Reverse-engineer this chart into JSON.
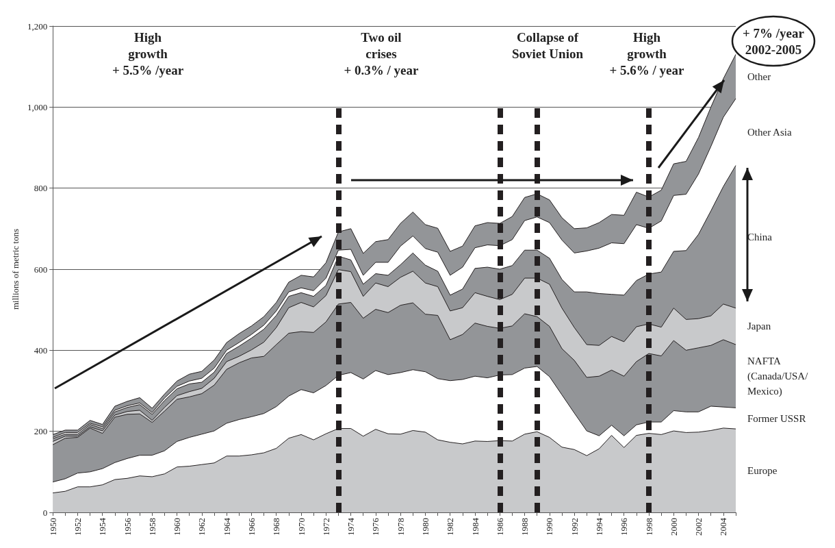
{
  "chart_data": {
    "type": "area",
    "stacked": true,
    "ylabel": "millions of metric tons",
    "x": [
      1950,
      1951,
      1952,
      1953,
      1954,
      1955,
      1956,
      1957,
      1958,
      1959,
      1960,
      1961,
      1962,
      1963,
      1964,
      1965,
      1966,
      1967,
      1968,
      1969,
      1970,
      1971,
      1972,
      1973,
      1974,
      1975,
      1976,
      1977,
      1978,
      1979,
      1980,
      1981,
      1982,
      1983,
      1984,
      1985,
      1986,
      1987,
      1988,
      1989,
      1990,
      1991,
      1992,
      1993,
      1994,
      1995,
      1996,
      1997,
      1998,
      1999,
      2000,
      2001,
      2002,
      2003,
      2004,
      2005
    ],
    "series": [
      {
        "name": "Europe",
        "color": "#c8c9cb",
        "values": [
          48,
          52,
          63,
          63,
          68,
          81,
          84,
          90,
          88,
          95,
          112,
          114,
          118,
          122,
          139,
          139,
          142,
          147,
          158,
          183,
          192,
          179,
          194,
          207,
          207,
          188,
          205,
          194,
          193,
          202,
          198,
          179,
          173,
          169,
          176,
          175,
          177,
          176,
          193,
          199,
          185,
          161,
          155,
          140,
          157,
          190,
          160,
          190,
          195,
          192,
          201,
          197,
          198,
          202,
          208,
          206
        ]
      },
      {
        "name": "Former USSR",
        "color": "#ffffff",
        "values": [
          27,
          31,
          34,
          37,
          40,
          42,
          49,
          51,
          53,
          57,
          63,
          71,
          75,
          79,
          81,
          90,
          94,
          97,
          103,
          104,
          111,
          116,
          119,
          131,
          138,
          141,
          145,
          146,
          152,
          150,
          149,
          151,
          152,
          159,
          160,
          157,
          162,
          164,
          163,
          161,
          150,
          129,
          90,
          61,
          32,
          25,
          29,
          26,
          28,
          31,
          50,
          51,
          50,
          60,
          52,
          52
        ]
      },
      {
        "name": "NAFTA (Canada/USA/Mexico)",
        "color": "#939598",
        "values": [
          92,
          100,
          88,
          108,
          87,
          112,
          109,
          102,
          81,
          98,
          104,
          100,
          100,
          113,
          133,
          140,
          145,
          141,
          153,
          155,
          143,
          149,
          157,
          176,
          173,
          150,
          151,
          153,
          166,
          165,
          142,
          156,
          101,
          111,
          131,
          127,
          115,
          120,
          134,
          123,
          124,
          114,
          130,
          132,
          147,
          136,
          147,
          156,
          169,
          163,
          173,
          152,
          158,
          150,
          166,
          156
        ]
      },
      {
        "name": "Japan",
        "color": "#c8c9cb",
        "values": [
          8,
          5,
          3,
          3,
          6,
          5,
          7,
          9,
          5,
          9,
          9,
          13,
          13,
          17,
          19,
          16,
          20,
          35,
          42,
          63,
          72,
          63,
          65,
          85,
          76,
          54,
          65,
          64,
          69,
          78,
          77,
          71,
          71,
          66,
          75,
          74,
          71,
          78,
          88,
          95,
          104,
          100,
          81,
          81,
          76,
          83,
          85,
          86,
          73,
          71,
          80,
          76,
          72,
          73,
          88,
          90
        ]
      },
      {
        "name": "China",
        "color": "#939598",
        "values": [
          7,
          5,
          5,
          6,
          6,
          8,
          10,
          14,
          15,
          17,
          17,
          19,
          15,
          15,
          20,
          25,
          29,
          32,
          30,
          28,
          24,
          26,
          25,
          33,
          29,
          30,
          23,
          28,
          31,
          45,
          44,
          38,
          39,
          46,
          60,
          72,
          75,
          71,
          69,
          69,
          64,
          71,
          88,
          130,
          128,
          104,
          115,
          114,
          123,
          136,
          140,
          170,
          208,
          259,
          290,
          352
        ]
      },
      {
        "name": "Other Asia",
        "color": "#ffffff",
        "values": [
          3,
          4,
          4,
          3,
          4,
          4,
          4,
          4,
          4,
          6,
          6,
          7,
          10,
          10,
          8,
          9,
          9,
          10,
          11,
          11,
          12,
          14,
          18,
          15,
          26,
          22,
          28,
          32,
          46,
          42,
          41,
          47,
          49,
          54,
          51,
          55,
          58,
          64,
          73,
          82,
          88,
          97,
          96,
          101,
          112,
          127,
          127,
          138,
          113,
          126,
          138,
          139,
          149,
          159,
          171,
          165
        ]
      },
      {
        "name": "Other",
        "color": "#939598",
        "values": [
          7,
          6,
          6,
          7,
          6,
          10,
          11,
          13,
          11,
          10,
          13,
          17,
          17,
          20,
          19,
          22,
          21,
          21,
          21,
          24,
          31,
          34,
          38,
          45,
          51,
          54,
          51,
          56,
          56,
          59,
          59,
          59,
          59,
          52,
          54,
          55,
          55,
          57,
          57,
          57,
          56,
          55,
          60,
          57,
          63,
          70,
          70,
          80,
          77,
          76,
          78,
          81,
          90,
          97,
          95,
          109
        ]
      }
    ],
    "xlim": [
      1950,
      2005
    ],
    "xticks": [
      1950,
      {
        "value": 1951,
        "label": null
      },
      1952,
      {
        "value": 1953,
        "label": null
      },
      1954,
      {
        "value": 1955,
        "label": null
      },
      1956,
      {
        "value": 1957,
        "label": null
      },
      1958,
      {
        "value": 1959,
        "label": null
      },
      1960,
      {
        "value": 1961,
        "label": null
      },
      1962,
      {
        "value": 1963,
        "label": null
      },
      1964,
      {
        "value": 1965,
        "label": null
      },
      1966,
      {
        "value": 1967,
        "label": null
      },
      1968,
      {
        "value": 1969,
        "label": null
      },
      1970,
      {
        "value": 1971,
        "label": null
      },
      1972,
      {
        "value": 1973,
        "label": null
      },
      1974,
      {
        "value": 1975,
        "label": null
      },
      1976,
      {
        "value": 1977,
        "label": null
      },
      1978,
      {
        "value": 1979,
        "label": null
      },
      1980,
      {
        "value": 1981,
        "label": null
      },
      1982,
      {
        "value": 1983,
        "label": null
      },
      1984,
      {
        "value": 1985,
        "label": null
      },
      1986,
      {
        "value": 1987,
        "label": null
      },
      1988,
      {
        "value": 1989,
        "label": null
      },
      1990,
      {
        "value": 1991,
        "label": null
      },
      1992,
      {
        "value": 1993,
        "label": null
      },
      1994,
      {
        "value": 1995,
        "label": null
      },
      1996,
      {
        "value": 1997,
        "label": null
      },
      1998,
      {
        "value": 1999,
        "label": null
      },
      2000,
      {
        "value": 2001,
        "label": null
      },
      2002,
      {
        "value": 2003,
        "label": null
      },
      2004,
      {
        "value": 2005,
        "label": null
      }
    ],
    "ylim": [
      0,
      1200
    ],
    "yticks": [
      0,
      200,
      400,
      600,
      800,
      {
        "value": 1000,
        "label": "1,000"
      },
      {
        "value": 1200,
        "label": "1,200"
      }
    ],
    "grid": "y",
    "legend": false,
    "ref_lines": [
      {
        "axis": "x",
        "value": 1973,
        "color": "#231f20",
        "line_style": "dashed"
      },
      {
        "axis": "x",
        "value": 1986,
        "color": "#231f20",
        "line_style": "dashed"
      },
      {
        "axis": "x",
        "value": 1989,
        "color": "#231f20",
        "line_style": "dashed"
      },
      {
        "axis": "x",
        "value": 1998,
        "color": "#231f20",
        "line_style": "dashed"
      }
    ],
    "annotations": [
      "High\ngrowth\n+ 5.5% /year",
      "Two oil\ncrises\n+ 0.3% / year",
      "Collapse of\nSoviet Union",
      "High\ngrowth\n+ 5.6% / year",
      "+ 7% /year\n2002-2005"
    ]
  }
}
